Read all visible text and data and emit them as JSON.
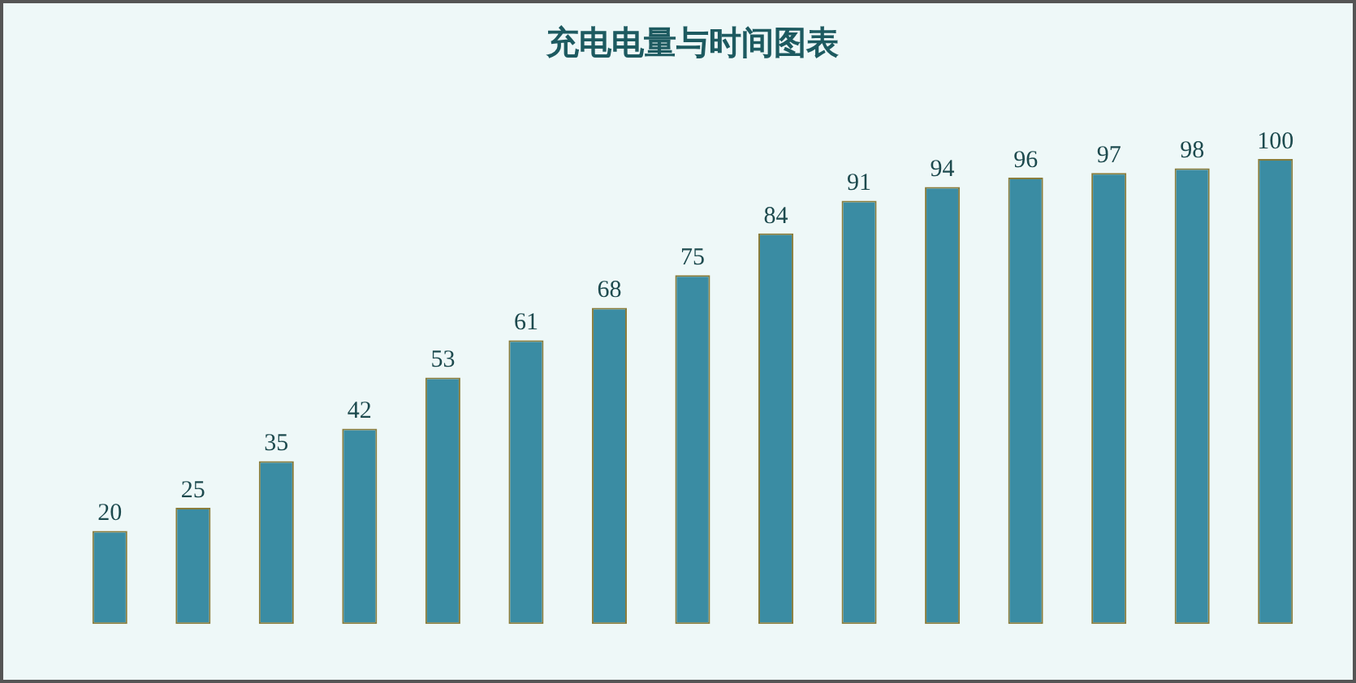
{
  "chart_data": {
    "type": "bar",
    "title": "充电电量与时间图表",
    "categories": [
      null,
      null,
      null,
      null,
      null,
      null,
      null,
      null,
      null,
      null,
      null,
      null,
      null,
      null,
      null
    ],
    "values": [
      20,
      25,
      35,
      42,
      53,
      61,
      68,
      75,
      84,
      91,
      94,
      96,
      97,
      98,
      100
    ],
    "color": "#3a8ca3",
    "data_labels": true,
    "grid": false,
    "legend": false
  }
}
